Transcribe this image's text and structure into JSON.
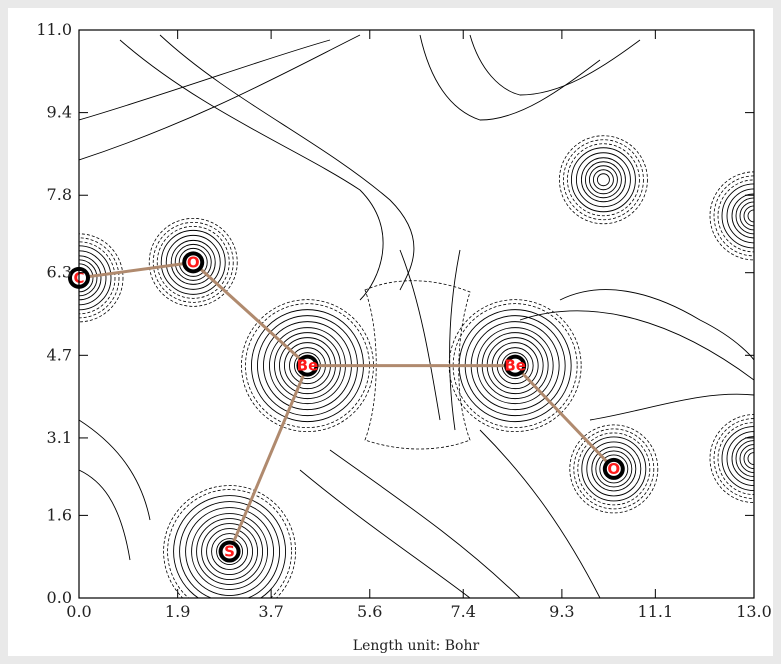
{
  "chart_data": {
    "type": "contour",
    "xlabel": "Length unit: Bohr",
    "xlim": [
      0.0,
      13.0
    ],
    "ylim": [
      0.0,
      11.0
    ],
    "x_ticks": [
      "0.0",
      "1.9",
      "3.7",
      "5.6",
      "7.4",
      "9.3",
      "11.1",
      "13.0"
    ],
    "y_ticks": [
      "11.0",
      "9.4",
      "7.8",
      "6.3",
      "4.7",
      "3.1",
      "1.6",
      "0.0"
    ],
    "atoms": [
      {
        "label": "C",
        "x": 0.0,
        "y": 6.2
      },
      {
        "label": "O",
        "x": 2.2,
        "y": 6.5
      },
      {
        "label": "Be",
        "x": 4.4,
        "y": 4.5
      },
      {
        "label": "S",
        "x": 2.9,
        "y": 0.9
      },
      {
        "label": "Be",
        "x": 8.4,
        "y": 4.5
      },
      {
        "label": "O",
        "x": 10.3,
        "y": 2.5
      }
    ],
    "bonds": [
      [
        0,
        1
      ],
      [
        1,
        2
      ],
      [
        2,
        3
      ],
      [
        2,
        4
      ],
      [
        4,
        5
      ]
    ],
    "bond_color": "#b08a6e",
    "label_color": "#ff1a1a"
  }
}
